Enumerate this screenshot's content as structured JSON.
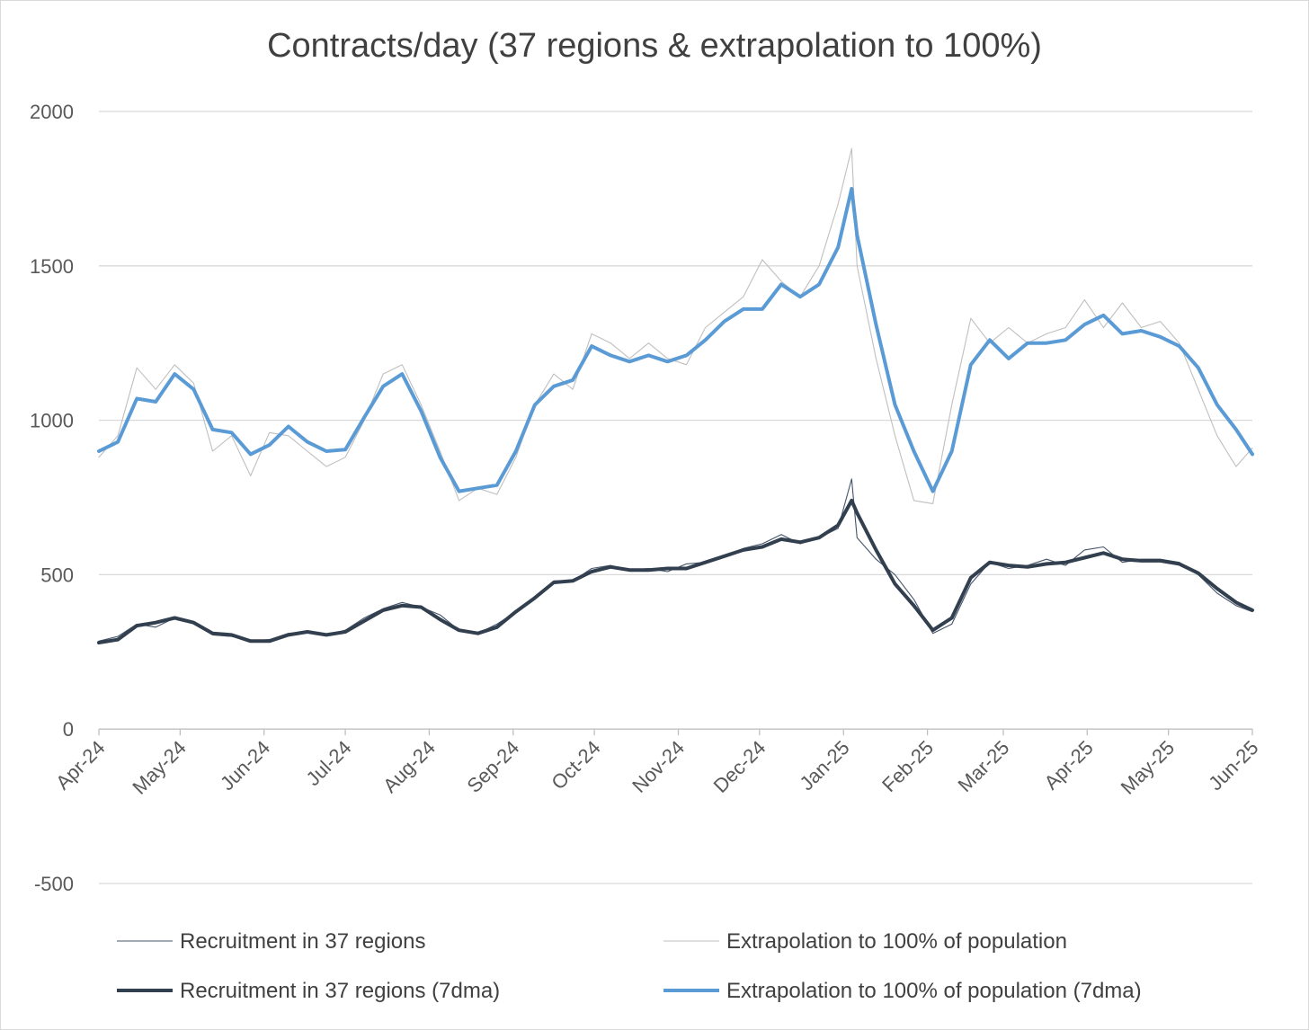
{
  "chart_data": {
    "type": "line",
    "title": "Contracts/day (37 regions & extrapolation to 100%)",
    "xlabel": "",
    "ylabel": "",
    "ylim": [
      -500,
      2000
    ],
    "y_ticks": [
      "2000",
      "1500",
      "1000",
      "500",
      "0",
      "-500"
    ],
    "x_ticks": [
      "Apr-24",
      "May-24",
      "Jun-24",
      "Jul-24",
      "Aug-24",
      "Sep-24",
      "Oct-24",
      "Nov-24",
      "Dec-24",
      "Jan-25",
      "Feb-25",
      "Mar-25",
      "Apr-25",
      "May-25",
      "Jun-25"
    ],
    "grid": true,
    "legend_position": "bottom",
    "x_dates": [
      "2024-04-01",
      "2024-04-08",
      "2024-04-15",
      "2024-04-22",
      "2024-04-29",
      "2024-05-06",
      "2024-05-13",
      "2024-05-20",
      "2024-05-27",
      "2024-06-03",
      "2024-06-10",
      "2024-06-17",
      "2024-06-24",
      "2024-07-01",
      "2024-07-08",
      "2024-07-15",
      "2024-07-22",
      "2024-07-29",
      "2024-08-05",
      "2024-08-12",
      "2024-08-19",
      "2024-08-26",
      "2024-09-02",
      "2024-09-09",
      "2024-09-16",
      "2024-09-23",
      "2024-09-30",
      "2024-10-07",
      "2024-10-14",
      "2024-10-21",
      "2024-10-28",
      "2024-11-04",
      "2024-11-11",
      "2024-11-18",
      "2024-11-25",
      "2024-12-02",
      "2024-12-09",
      "2024-12-16",
      "2024-12-23",
      "2024-12-30",
      "2025-01-04",
      "2025-01-06",
      "2025-01-13",
      "2025-01-20",
      "2025-01-27",
      "2025-02-03",
      "2025-02-10",
      "2025-02-17",
      "2025-02-24",
      "2025-03-03",
      "2025-03-10",
      "2025-03-17",
      "2025-03-24",
      "2025-03-31",
      "2025-04-07",
      "2025-04-14",
      "2025-04-21",
      "2025-04-28",
      "2025-05-05",
      "2025-05-12",
      "2025-05-19",
      "2025-05-26",
      "2025-06-01"
    ],
    "series": [
      {
        "name": "Recruitment in 37 regions",
        "color": "#44546a",
        "values": [
          285,
          300,
          340,
          330,
          360,
          345,
          305,
          300,
          285,
          290,
          310,
          315,
          305,
          320,
          360,
          390,
          410,
          395,
          370,
          320,
          310,
          340,
          380,
          430,
          480,
          480,
          520,
          530,
          515,
          520,
          510,
          535,
          540,
          560,
          585,
          600,
          630,
          600,
          620,
          650,
          810,
          620,
          550,
          500,
          420,
          310,
          340,
          470,
          540,
          520,
          530,
          550,
          530,
          580,
          590,
          540,
          550,
          550,
          540,
          500,
          440,
          400,
          380
        ]
      },
      {
        "name": "Extrapolation to 100% of population",
        "color": "#bfbfbf",
        "values": [
          880,
          950,
          1170,
          1100,
          1180,
          1120,
          900,
          950,
          820,
          960,
          950,
          900,
          850,
          880,
          1000,
          1150,
          1180,
          1050,
          900,
          740,
          780,
          760,
          880,
          1050,
          1150,
          1100,
          1280,
          1250,
          1200,
          1250,
          1200,
          1180,
          1300,
          1350,
          1400,
          1520,
          1450,
          1400,
          1500,
          1700,
          1880,
          1500,
          1200,
          950,
          740,
          730,
          1050,
          1330,
          1250,
          1300,
          1250,
          1280,
          1300,
          1390,
          1300,
          1380,
          1300,
          1320,
          1250,
          1100,
          950,
          850,
          910
        ]
      },
      {
        "name": "Recruitment in 37 regions (7dma)",
        "color": "#323f4f",
        "values": [
          280,
          290,
          335,
          345,
          360,
          345,
          310,
          305,
          285,
          285,
          305,
          315,
          305,
          315,
          350,
          385,
          400,
          395,
          355,
          320,
          310,
          330,
          380,
          425,
          475,
          480,
          510,
          525,
          515,
          515,
          520,
          520,
          540,
          560,
          580,
          590,
          615,
          605,
          620,
          660,
          740,
          700,
          580,
          470,
          400,
          320,
          360,
          490,
          540,
          530,
          525,
          535,
          540,
          555,
          570,
          550,
          545,
          545,
          535,
          505,
          455,
          410,
          385
        ]
      },
      {
        "name": "Extrapolation to 100% of population (7dma)",
        "color": "#5b9bd5",
        "values": [
          900,
          930,
          1070,
          1060,
          1150,
          1100,
          970,
          960,
          890,
          920,
          980,
          930,
          900,
          905,
          1010,
          1110,
          1150,
          1030,
          880,
          770,
          780,
          790,
          900,
          1050,
          1110,
          1130,
          1240,
          1210,
          1190,
          1210,
          1190,
          1210,
          1260,
          1320,
          1360,
          1360,
          1440,
          1400,
          1440,
          1560,
          1750,
          1600,
          1310,
          1050,
          900,
          770,
          900,
          1180,
          1260,
          1200,
          1250,
          1250,
          1260,
          1310,
          1340,
          1280,
          1290,
          1270,
          1240,
          1170,
          1050,
          970,
          890
        ]
      }
    ]
  },
  "legend": {
    "items": [
      "Recruitment in 37 regions",
      "Extrapolation to 100% of population",
      "Recruitment in 37 regions (7dma)",
      "Extrapolation to 100% of population (7dma)"
    ]
  }
}
